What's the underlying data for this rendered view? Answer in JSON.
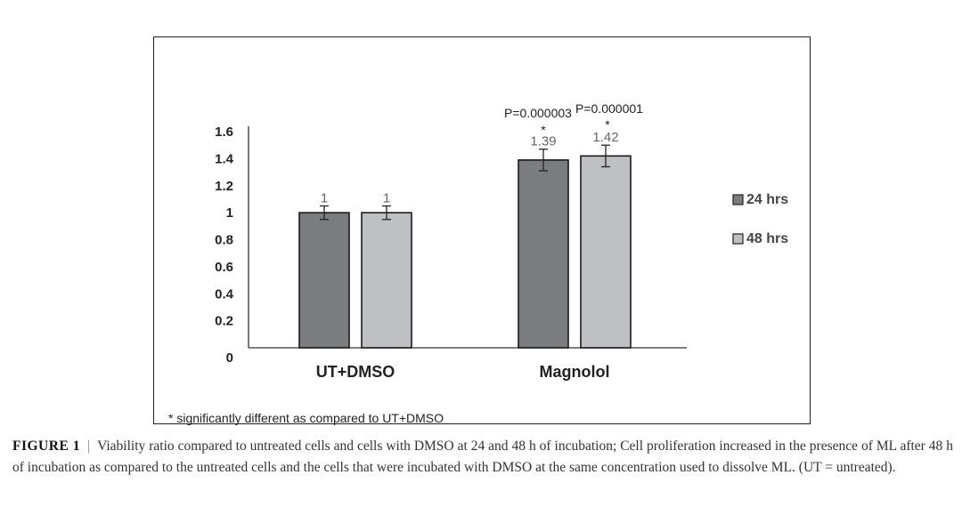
{
  "chart_data": {
    "type": "bar",
    "categories": [
      "UT+DMSO",
      "Magnolol"
    ],
    "series": [
      {
        "name": "24 hrs",
        "values": [
          1,
          1.39
        ],
        "error": [
          0.05,
          0.08
        ],
        "color": "#7b7c80"
      },
      {
        "name": "48 hrs",
        "values": [
          1,
          1.42
        ],
        "error": [
          0.05,
          0.08
        ],
        "color": "#bfc0c3"
      }
    ],
    "data_labels": [
      [
        "1",
        "1.39"
      ],
      [
        "1",
        "1.42"
      ]
    ],
    "yticks": [
      "0",
      "0.2",
      "0.4",
      "0.6",
      "0.8",
      "1",
      "1.2",
      "1.4",
      "1.6"
    ],
    "ylim": [
      0,
      1.6
    ],
    "legend_position": "right",
    "annotations": {
      "p_values": [
        "P=0.000003",
        "P=0.000001"
      ],
      "star": "*",
      "footnote": "* significantly different as compared to UT+DMSO"
    },
    "title": "",
    "xlabel": "",
    "ylabel": ""
  },
  "caption": {
    "label": "FIGURE 1",
    "separator": "|",
    "text": "Viability ratio compared to untreated cells and cells with DMSO at 24 and 48 h of incubation; Cell proliferation increased in the presence of ML after 48 h of incubation as compared to the untreated cells and the cells that were incubated with DMSO at the same concentration used to dissolve ML. (UT = untreated)."
  }
}
